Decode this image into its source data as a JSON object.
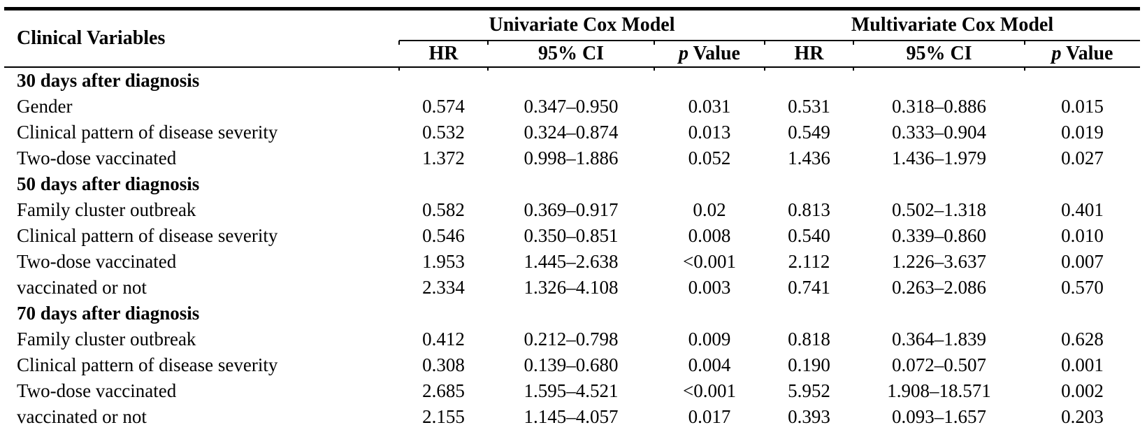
{
  "table": {
    "col1_header": "Clinical Variables",
    "group_headers": {
      "univariate": "Univariate Cox Model",
      "multivariate": "Multivariate Cox Model"
    },
    "sub_headers": {
      "hr": "HR",
      "ci": "95% CI",
      "p_italic": "p",
      "p_rest": " Value"
    },
    "sections": [
      {
        "title": "30 days after diagnosis",
        "rows": [
          {
            "variable": "Gender",
            "uni": {
              "hr": "0.574",
              "ci": "0.347–0.950",
              "p": "0.031"
            },
            "multi": {
              "hr": "0.531",
              "ci": "0.318–0.886",
              "p": "0.015"
            }
          },
          {
            "variable": "Clinical pattern of disease severity",
            "uni": {
              "hr": "0.532",
              "ci": "0.324–0.874",
              "p": "0.013"
            },
            "multi": {
              "hr": "0.549",
              "ci": "0.333–0.904",
              "p": "0.019"
            }
          },
          {
            "variable": "Two-dose vaccinated",
            "uni": {
              "hr": "1.372",
              "ci": "0.998–1.886",
              "p": "0.052"
            },
            "multi": {
              "hr": "1.436",
              "ci": "1.436–1.979",
              "p": "0.027"
            }
          }
        ]
      },
      {
        "title": "50 days after diagnosis",
        "rows": [
          {
            "variable": "Family cluster outbreak",
            "uni": {
              "hr": "0.582",
              "ci": "0.369–0.917",
              "p": "0.02"
            },
            "multi": {
              "hr": "0.813",
              "ci": "0.502–1.318",
              "p": "0.401"
            }
          },
          {
            "variable": "Clinical pattern of disease severity",
            "uni": {
              "hr": "0.546",
              "ci": "0.350–0.851",
              "p": "0.008"
            },
            "multi": {
              "hr": "0.540",
              "ci": "0.339–0.860",
              "p": "0.010"
            }
          },
          {
            "variable": "Two-dose vaccinated",
            "uni": {
              "hr": "1.953",
              "ci": "1.445–2.638",
              "p": "<0.001"
            },
            "multi": {
              "hr": "2.112",
              "ci": "1.226–3.637",
              "p": "0.007"
            }
          },
          {
            "variable": "vaccinated or not",
            "uni": {
              "hr": "2.334",
              "ci": "1.326–4.108",
              "p": "0.003"
            },
            "multi": {
              "hr": "0.741",
              "ci": "0.263–2.086",
              "p": "0.570"
            }
          }
        ]
      },
      {
        "title": "70 days after diagnosis",
        "rows": [
          {
            "variable": "Family cluster outbreak",
            "uni": {
              "hr": "0.412",
              "ci": "0.212–0.798",
              "p": "0.009"
            },
            "multi": {
              "hr": "0.818",
              "ci": "0.364–1.839",
              "p": "0.628"
            }
          },
          {
            "variable": "Clinical pattern of disease severity",
            "uni": {
              "hr": "0.308",
              "ci": "0.139–0.680",
              "p": "0.004"
            },
            "multi": {
              "hr": "0.190",
              "ci": "0.072–0.507",
              "p": "0.001"
            }
          },
          {
            "variable": "Two-dose vaccinated",
            "uni": {
              "hr": "2.685",
              "ci": "1.595–4.521",
              "p": "<0.001"
            },
            "multi": {
              "hr": "5.952",
              "ci": "1.908–18.571",
              "p": "0.002"
            }
          },
          {
            "variable": "vaccinated or not",
            "uni": {
              "hr": "2.155",
              "ci": "1.145–4.057",
              "p": "0.017"
            },
            "multi": {
              "hr": "0.393",
              "ci": "0.093–1.657",
              "p": "0.203"
            }
          }
        ]
      }
    ]
  }
}
